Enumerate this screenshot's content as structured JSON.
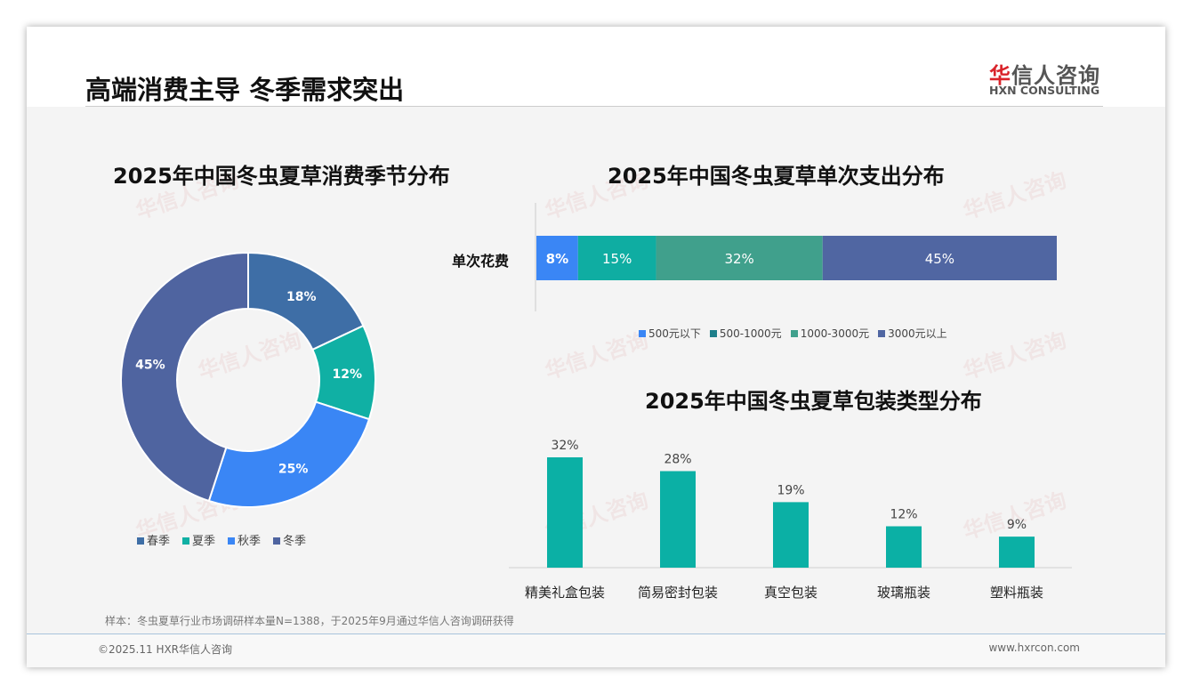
{
  "header": {
    "title": "高端消费主导 冬季需求突出",
    "logo_cn": "华信人咨询",
    "logo_en": "HXN CONSULTING"
  },
  "footer": {
    "source": "样本：冬虫夏草行业市场调研样本量N=1388，于2025年9月通过华信人咨询调研获得",
    "copyright": "©2025.11 HXR华信人咨询",
    "url": "www.hxrcon.com"
  },
  "chart_data": [
    {
      "type": "pie",
      "title": "2025年中国冬虫夏草消费季节分布",
      "categories": [
        "春季",
        "夏季",
        "秋季",
        "冬季"
      ],
      "values": [
        18,
        12,
        25,
        45
      ],
      "labels": [
        "18%",
        "12%",
        "25%",
        "45%"
      ],
      "colors": [
        "#3e6ea6",
        "#10b0a4",
        "#3a86f5",
        "#4f64a0"
      ],
      "legend": "bottom"
    },
    {
      "type": "bar",
      "orientation": "horizontal-stacked",
      "title": "2025年中国冬虫夏草单次支出分布",
      "categories": [
        "单次花费"
      ],
      "series": [
        {
          "name": "500元以下",
          "values": [
            8
          ],
          "label": "8%",
          "color": "#3a86f5",
          "legend_color": "#3a86f5"
        },
        {
          "name": "500-1000元",
          "values": [
            15
          ],
          "label": "15%",
          "color": "#0fada2",
          "legend_color": "#1e7f8a"
        },
        {
          "name": "1000-3000元",
          "values": [
            32
          ],
          "label": "32%",
          "color": "#40a08c",
          "legend_color": "#40a08c"
        },
        {
          "name": "3000元以上",
          "values": [
            45
          ],
          "label": "45%",
          "color": "#5066a2",
          "legend_color": "#5066a2"
        }
      ],
      "legend": "bottom"
    },
    {
      "type": "bar",
      "title": "2025年中国冬虫夏草包装类型分布",
      "categories": [
        "精美礼盒包装",
        "简易密封包装",
        "真空包装",
        "玻璃瓶装",
        "塑料瓶装"
      ],
      "values": [
        32,
        28,
        19,
        12,
        9
      ],
      "labels": [
        "32%",
        "28%",
        "19%",
        "12%",
        "9%"
      ],
      "color": "#0bb0a5",
      "ylim": [
        0,
        35
      ]
    }
  ]
}
